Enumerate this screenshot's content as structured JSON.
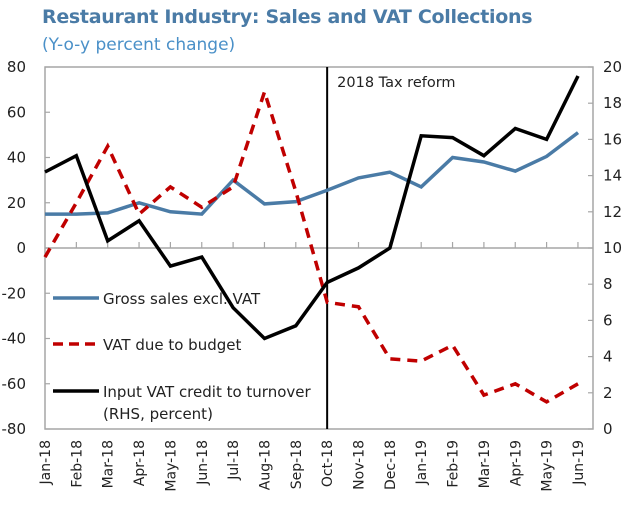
{
  "chart_data": {
    "type": "line",
    "title": "Restaurant Industry: Sales and VAT Collections",
    "subtitle": "(Y-o-y percent change)",
    "xlabel": "",
    "ylabel": "",
    "categories": [
      "Jan-18",
      "Feb-18",
      "Mar-18",
      "Apr-18",
      "May-18",
      "Jun-18",
      "Jul-18",
      "Aug-18",
      "Sep-18",
      "Oct-18",
      "Nov-18",
      "Dec-18",
      "Jan-19",
      "Feb-19",
      "Mar-19",
      "Apr-19",
      "May-19",
      "Jun-19"
    ],
    "ylim": [
      -80,
      80
    ],
    "yticks": [
      80,
      60,
      40,
      20,
      0,
      -20,
      -40,
      -60,
      -80
    ],
    "y2lim": [
      0,
      20
    ],
    "y2ticks": [
      20,
      18,
      16,
      14,
      12,
      10,
      8,
      6,
      4,
      2,
      0
    ],
    "grid": false,
    "legend_position": "center-left",
    "series": [
      {
        "name": "Gross sales excl. VAT",
        "axis": "left",
        "style": "solid",
        "color": "#4a7ba6",
        "values": [
          15,
          15,
          15.5,
          20,
          16,
          15,
          30,
          19.5,
          20.5,
          25.5,
          31,
          33.5,
          27,
          40,
          38,
          34,
          40.5,
          51
        ]
      },
      {
        "name": "VAT due to budget",
        "axis": "left",
        "style": "dashed",
        "color": "#c00000",
        "values": [
          -4,
          20,
          45,
          15,
          27,
          18,
          27,
          69,
          25,
          -24,
          -26,
          -49,
          -50,
          -43,
          -65,
          -60,
          -68,
          -60
        ]
      },
      {
        "name": "Input VAT credit to turnover (RHS, percent)",
        "axis": "right",
        "style": "solid",
        "color": "#000000",
        "values": [
          14.2,
          15.1,
          10.4,
          11.5,
          9.0,
          9.5,
          6.7,
          5.0,
          5.7,
          8.1,
          8.9,
          10.0,
          16.2,
          16.1,
          15.1,
          16.6,
          16.0,
          19.5
        ]
      }
    ],
    "annotations": [
      {
        "text": "2018 Tax reform",
        "at_category": "Oct-18",
        "type": "vertical-line"
      }
    ],
    "legend": [
      {
        "label_lines": [
          "Gross sales excl. VAT"
        ]
      },
      {
        "label_lines": [
          "VAT due to budget"
        ]
      },
      {
        "label_lines": [
          "Input VAT credit to turnover",
          "(RHS, percent)"
        ]
      }
    ]
  }
}
